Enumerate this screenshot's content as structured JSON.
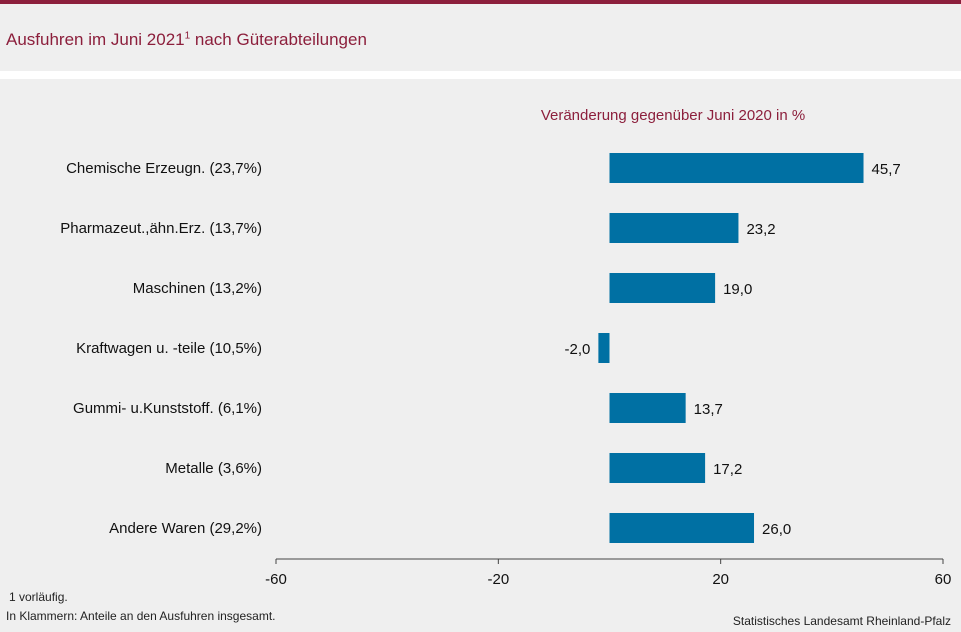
{
  "header": {
    "title": "Ausfuhren im Juni 2021",
    "title_sup": "1",
    "title_rest": " nach Güterabteilungen"
  },
  "colors": {
    "brand": "#8c1f3c",
    "bar": "#0070a3",
    "background": "#efefef"
  },
  "chart_data": {
    "type": "bar",
    "orientation": "horizontal",
    "subtitle": "Veränderung gegenüber Juni 2020 in %",
    "categories": [
      "Chemische Erzeugn. (23,7%)",
      "Pharmazeut.,ähn.Erz. (13,7%)",
      "Maschinen (13,2%)",
      "Kraftwagen u. -teile (10,5%)",
      "Gummi- u.Kunststoff. (6,1%)",
      "Metalle (3,6%)",
      "Andere Waren (29,2%)"
    ],
    "values": [
      45.7,
      23.2,
      19.0,
      -2.0,
      13.7,
      17.2,
      26.0
    ],
    "value_labels": [
      "45,7",
      "23,2",
      "19,0",
      "-2,0",
      "13,7",
      "17,2",
      "26,0"
    ],
    "xlim": [
      -60,
      60
    ],
    "xticks": [
      -60,
      -20,
      20,
      60
    ],
    "xtick_labels": [
      "-60",
      "-20",
      "20",
      "60"
    ],
    "grid": false,
    "legend": "none"
  },
  "footer": {
    "note1": "1 vorläufig.",
    "note2": "In Klammern: Anteile an den Ausfuhren insgesamt.",
    "source": "Statistisches Landesamt Rheinland-Pfalz"
  }
}
